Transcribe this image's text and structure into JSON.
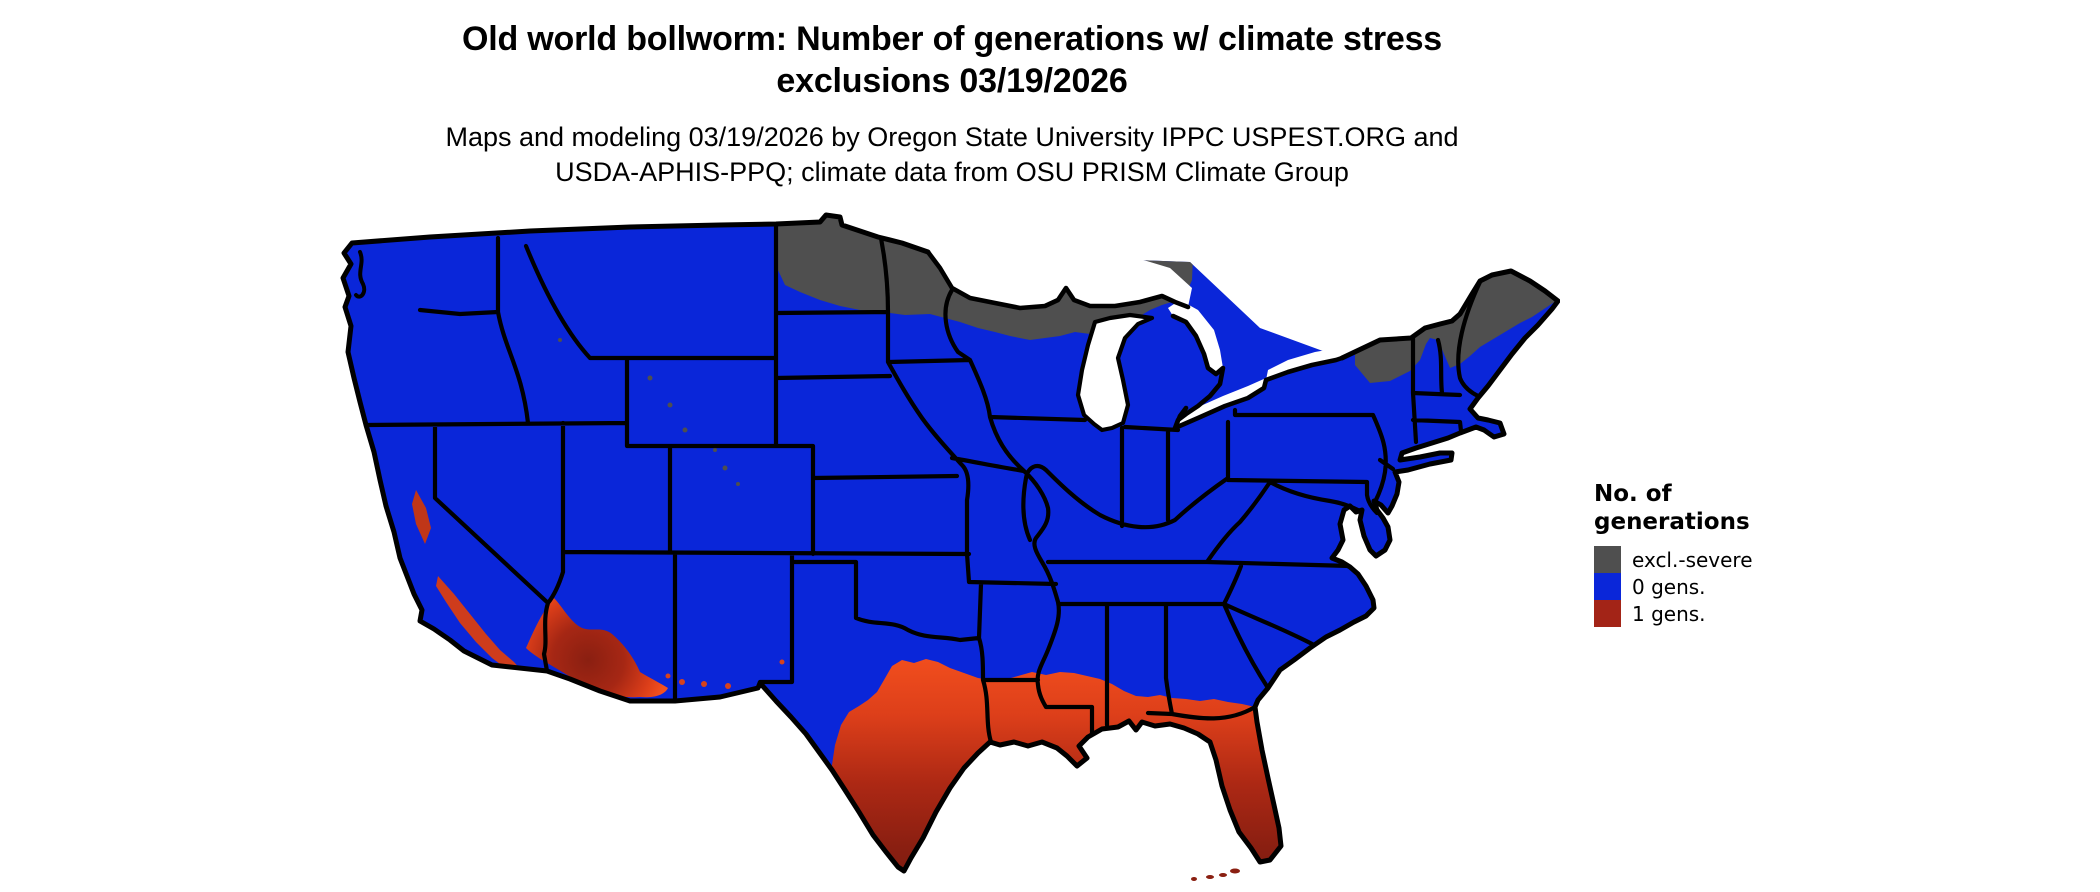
{
  "title": {
    "line1": "Old world bollworm: Number of generations w/ climate stress",
    "line2": "exclusions 03/19/2026"
  },
  "subtitle": {
    "line1": "Maps and modeling 03/19/2026 by Oregon State University IPPC USPEST.ORG and",
    "line2": "USDA-APHIS-PPQ; climate data from OSU PRISM Climate Group"
  },
  "legend": {
    "heading_line1": "No. of",
    "heading_line2": "generations",
    "items": [
      {
        "label": "excl.-severe",
        "color": "#4F4F4F"
      },
      {
        "label": "0 gens.",
        "color": "#0A26D9"
      },
      {
        "label": "1 gens.",
        "color": "#A32417"
      }
    ]
  },
  "map": {
    "colors": {
      "background": "#FFFFFF",
      "state_border": "#000000",
      "excluded_severe": "#4F4F4F",
      "zero_generations": "#0A26D9",
      "one_generation_edge": "#F4501E",
      "one_generation_deep": "#7E1B10"
    }
  }
}
